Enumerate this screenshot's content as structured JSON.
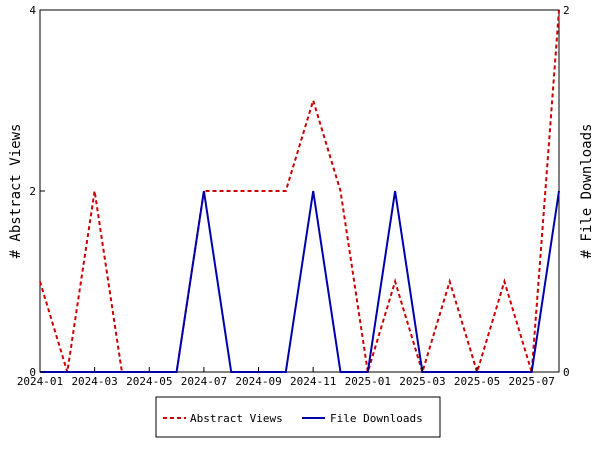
{
  "chart_data": {
    "type": "line",
    "x": [
      "2024-01",
      "2024-02",
      "2024-03",
      "2024-04",
      "2024-05",
      "2024-06",
      "2024-07",
      "2024-08",
      "2024-09",
      "2024-10",
      "2024-11",
      "2024-12",
      "2025-01",
      "2025-02",
      "2025-03",
      "2025-04",
      "2025-05",
      "2025-06",
      "2025-07",
      "2025-08"
    ],
    "xticks": [
      "2024-01",
      "2024-03",
      "2024-05",
      "2024-07",
      "2024-09",
      "2024-11",
      "2025-01",
      "2025-03",
      "2025-05",
      "2025-07"
    ],
    "ylabel_left": "# Abstract Views",
    "ylabel_right": "# File Downloads",
    "ylim_left": [
      0,
      4
    ],
    "ylim_right": [
      0,
      2
    ],
    "yticks_left": [
      "0",
      "2",
      "4"
    ],
    "yticks_right": [
      "0",
      "2"
    ],
    "grid": false,
    "legend_position": "bottom",
    "series": [
      {
        "name": "Abstract Views",
        "axis": "left",
        "color": "#cc0000",
        "style": "dashed",
        "values": [
          1,
          0,
          2,
          0,
          0,
          0,
          2,
          2,
          2,
          2,
          3,
          2,
          0,
          1,
          0,
          1,
          0,
          1,
          0,
          4
        ]
      },
      {
        "name": "File Downloads",
        "axis": "right",
        "color": "#0000aa",
        "style": "solid",
        "values": [
          0,
          0,
          0,
          0,
          0,
          0,
          1,
          0,
          0,
          0,
          1,
          0,
          0,
          1,
          0,
          0,
          0,
          0,
          0,
          1
        ]
      }
    ]
  }
}
